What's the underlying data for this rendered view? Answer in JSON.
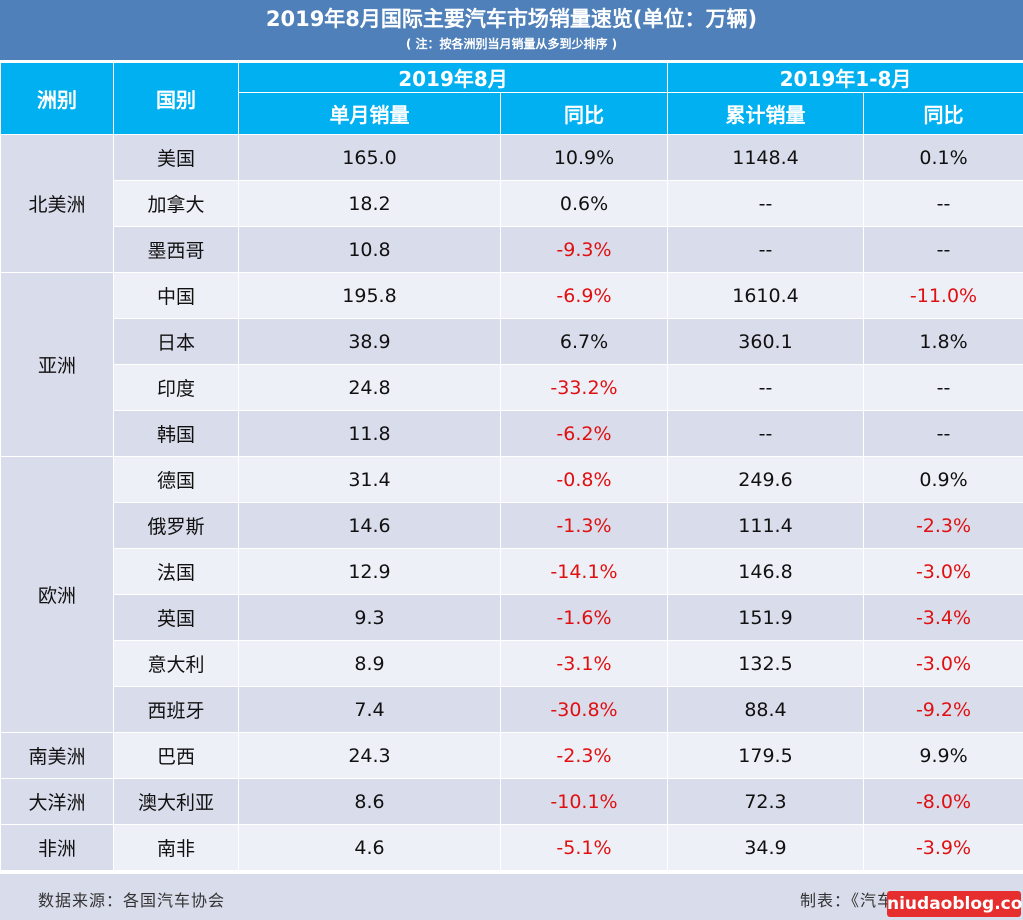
{
  "title": "2019年8月国际主要汽车市场销量速览(单位：万辆)",
  "note": "( 注：按各洲别当月销量从多到少排序 )",
  "headers": {
    "region": "洲别",
    "country": "国别",
    "group_month": "2019年8月",
    "group_ytd": "2019年1-8月",
    "month_sales": "单月销量",
    "month_yoy": "同比",
    "ytd_sales": "累计销量",
    "ytd_yoy": "同比"
  },
  "colors": {
    "header": "#00b0f0",
    "title": "#4f80b9",
    "negative": "#e01010",
    "band_dark": "#d9dceb",
    "band_light": "#eef0f8"
  },
  "chart_data": {
    "type": "table",
    "title": "2019年8月国际主要汽车市场销量速览(单位：万辆)",
    "groups": [
      {
        "region": "北美洲",
        "rows": [
          {
            "country": "美国",
            "month_sales": "165.0",
            "month_yoy": "10.9%",
            "ytd_sales": "1148.4",
            "ytd_yoy": "0.1%"
          },
          {
            "country": "加拿大",
            "month_sales": "18.2",
            "month_yoy": "0.6%",
            "ytd_sales": "--",
            "ytd_yoy": "--"
          },
          {
            "country": "墨西哥",
            "month_sales": "10.8",
            "month_yoy": "-9.3%",
            "ytd_sales": "--",
            "ytd_yoy": "--"
          }
        ]
      },
      {
        "region": "亚洲",
        "rows": [
          {
            "country": "中国",
            "month_sales": "195.8",
            "month_yoy": "-6.9%",
            "ytd_sales": "1610.4",
            "ytd_yoy": "-11.0%"
          },
          {
            "country": "日本",
            "month_sales": "38.9",
            "month_yoy": "6.7%",
            "ytd_sales": "360.1",
            "ytd_yoy": "1.8%"
          },
          {
            "country": "印度",
            "month_sales": "24.8",
            "month_yoy": "-33.2%",
            "ytd_sales": "--",
            "ytd_yoy": "--"
          },
          {
            "country": "韩国",
            "month_sales": "11.8",
            "month_yoy": "-6.2%",
            "ytd_sales": "--",
            "ytd_yoy": "--"
          }
        ]
      },
      {
        "region": "欧洲",
        "rows": [
          {
            "country": "德国",
            "month_sales": "31.4",
            "month_yoy": "-0.8%",
            "ytd_sales": "249.6",
            "ytd_yoy": "0.9%"
          },
          {
            "country": "俄罗斯",
            "month_sales": "14.6",
            "month_yoy": "-1.3%",
            "ytd_sales": "111.4",
            "ytd_yoy": "-2.3%"
          },
          {
            "country": "法国",
            "month_sales": "12.9",
            "month_yoy": "-14.1%",
            "ytd_sales": "146.8",
            "ytd_yoy": "-3.0%"
          },
          {
            "country": "英国",
            "month_sales": "9.3",
            "month_yoy": "-1.6%",
            "ytd_sales": "151.9",
            "ytd_yoy": "-3.4%"
          },
          {
            "country": "意大利",
            "month_sales": "8.9",
            "month_yoy": "-3.1%",
            "ytd_sales": "132.5",
            "ytd_yoy": "-3.0%"
          },
          {
            "country": "西班牙",
            "month_sales": "7.4",
            "month_yoy": "-30.8%",
            "ytd_sales": "88.4",
            "ytd_yoy": "-9.2%"
          }
        ]
      },
      {
        "region": "南美洲",
        "rows": [
          {
            "country": "巴西",
            "month_sales": "24.3",
            "month_yoy": "-2.3%",
            "ytd_sales": "179.5",
            "ytd_yoy": "9.9%"
          }
        ]
      },
      {
        "region": "大洋洲",
        "rows": [
          {
            "country": "澳大利亚",
            "month_sales": "8.6",
            "month_yoy": "-10.1%",
            "ytd_sales": "72.3",
            "ytd_yoy": "-8.0%"
          }
        ]
      },
      {
        "region": "非洲",
        "rows": [
          {
            "country": "南非",
            "month_sales": "4.6",
            "month_yoy": "-5.1%",
            "ytd_sales": "34.9",
            "ytd_yoy": "-3.9%"
          }
        ]
      }
    ]
  },
  "footer": {
    "source": "数据来源：各国汽车协会",
    "credit": "制表：《汽车纵横》杂志"
  },
  "watermark": "niudaoblog.com"
}
